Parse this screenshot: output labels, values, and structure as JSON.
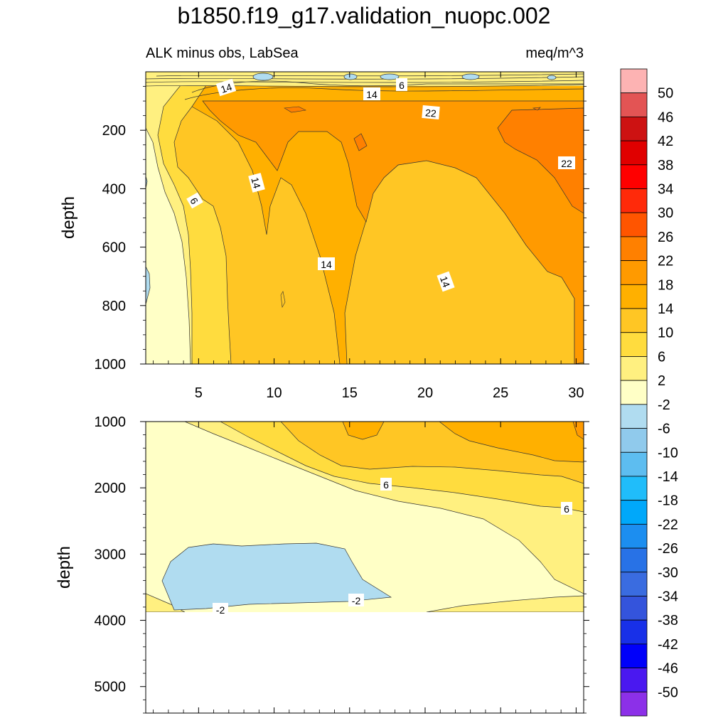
{
  "title": "b1850.f19_g17.validation_nuopc.002",
  "subtitle_left": "ALK minus obs, LabSea",
  "subtitle_right": "meq/m^3",
  "chart_data": [
    {
      "type": "heatmap",
      "panel": "upper",
      "ylabel": "depth",
      "y_reversed": true,
      "ylim": [
        0,
        1000
      ],
      "xlim": [
        1.5,
        30.5
      ],
      "x_ticks": [
        5,
        10,
        15,
        20,
        25,
        30
      ],
      "y_ticks": [
        200,
        400,
        600,
        800,
        1000
      ],
      "contour_labels": [
        "14",
        "14",
        "6",
        "22",
        "22",
        "14",
        "6",
        "14",
        "14"
      ],
      "dominant_range": "2 to 22"
    },
    {
      "type": "heatmap",
      "panel": "lower",
      "ylabel": "depth",
      "y_reversed": true,
      "ylim": [
        1000,
        5400
      ],
      "x_ticks": [
        5,
        10,
        15,
        20,
        25,
        30
      ],
      "y_ticks": [
        1000,
        2000,
        3000,
        4000,
        5000
      ],
      "data_bottom_depth": 3870,
      "contour_labels": [
        "6",
        "6",
        "-2",
        "-2"
      ],
      "dominant_range": "-6 to 14"
    }
  ],
  "colorbar": {
    "levels": [
      "50",
      "46",
      "42",
      "38",
      "34",
      "30",
      "26",
      "22",
      "18",
      "14",
      "10",
      "6",
      "2",
      "-2",
      "-6",
      "-10",
      "-14",
      "-18",
      "-22",
      "-26",
      "-30",
      "-34",
      "-38",
      "-42",
      "-46",
      "-50"
    ],
    "colors": [
      "#FDB3B3",
      "#E35454",
      "#CD1212",
      "#E00000",
      "#FF0000",
      "#FF2A0A",
      "#FF5500",
      "#FF8000",
      "#FF9A00",
      "#FFB000",
      "#FFC624",
      "#FFDC3E",
      "#FFF080",
      "#FFFFC6",
      "#B0DCF0",
      "#90CAEC",
      "#5DBDF0",
      "#20BDFA",
      "#00A8FA",
      "#1C8EF0",
      "#2872E6",
      "#3A6CE0",
      "#3454DC",
      "#1830E8",
      "#0000FA",
      "#4A18F0",
      "#8C30E8"
    ]
  }
}
